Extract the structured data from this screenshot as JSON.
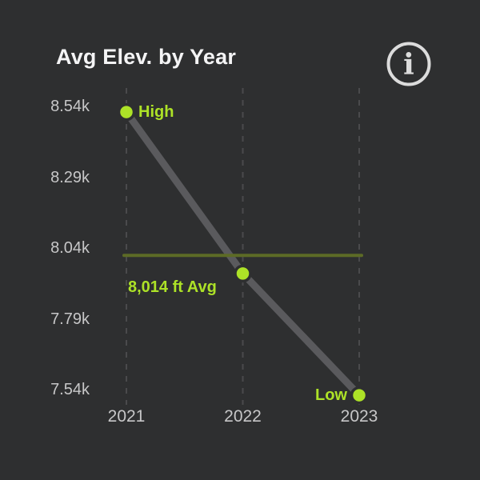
{
  "header": {
    "title": "Avg Elev. by Year",
    "info_button": {
      "icon": "info-circle-icon",
      "glyph": "i"
    }
  },
  "colors": {
    "background": "#2e2f30",
    "title_text": "#f4f4f5",
    "axis_text": "#c7c7c8",
    "gridline": "#4a4a4c",
    "series_gray": "#5a5a5d",
    "avg_olive": "#5d6b26",
    "highlight_green": "#ade227",
    "icon_gray": "#dcdcdc"
  },
  "chart_data": {
    "type": "line",
    "title": "Avg Elev. by Year",
    "categories": [
      "2021",
      "2022",
      "2023"
    ],
    "values": [
      8520,
      7950,
      7520
    ],
    "unit": "ft",
    "ylim": [
      7540,
      8540
    ],
    "y_ticks": [
      {
        "value": 8540,
        "label": "8.54k"
      },
      {
        "value": 8290,
        "label": "8.29k"
      },
      {
        "value": 8040,
        "label": "8.04k"
      },
      {
        "value": 7790,
        "label": "7.79k"
      },
      {
        "value": 7540,
        "label": "7.54k"
      }
    ],
    "point_labels": [
      "High",
      "",
      "Low"
    ],
    "average": {
      "value": 8014,
      "label": "8,014 ft Avg"
    },
    "grid": "vertical-dashed",
    "legend": "none"
  }
}
